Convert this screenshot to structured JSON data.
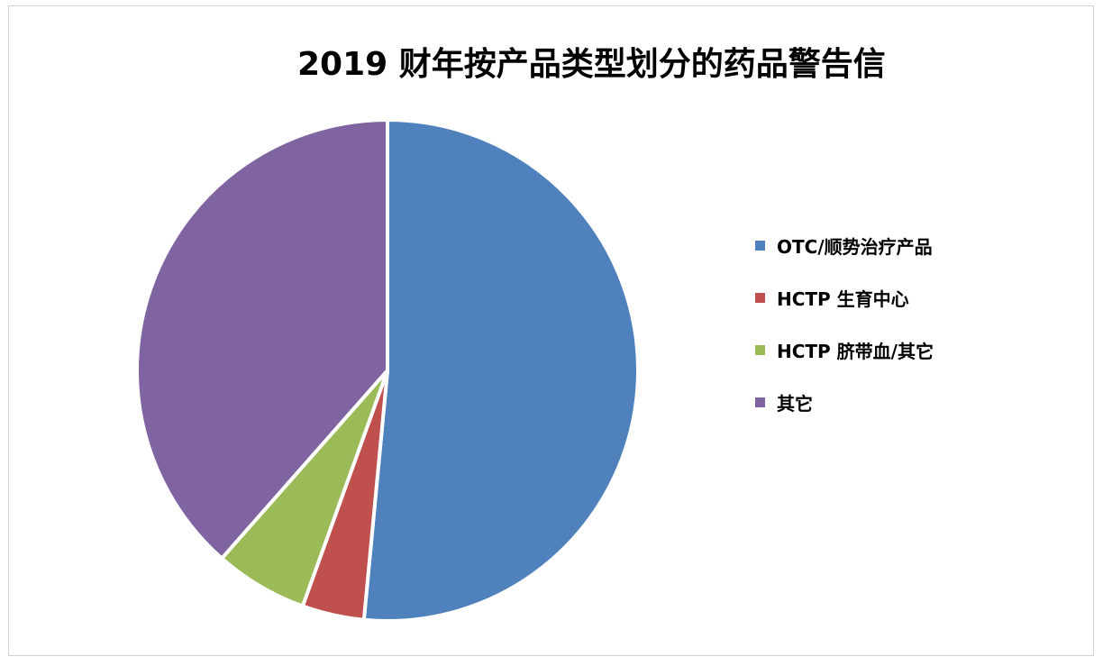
{
  "chart_data": {
    "type": "pie",
    "title": "2019 财年按产品类型划分的药品警告信",
    "categories": [
      "OTC/顺势治疗产品",
      "HCTP 生育中心",
      "HCTP 脐带血/其它",
      "其它"
    ],
    "values": [
      51.5,
      4,
      6,
      38.5
    ],
    "colors": [
      "#4F81BD",
      "#C0504D",
      "#9BBB59",
      "#8064A2"
    ],
    "legend_position": "right",
    "start_angle": "top",
    "direction": "clockwise"
  }
}
